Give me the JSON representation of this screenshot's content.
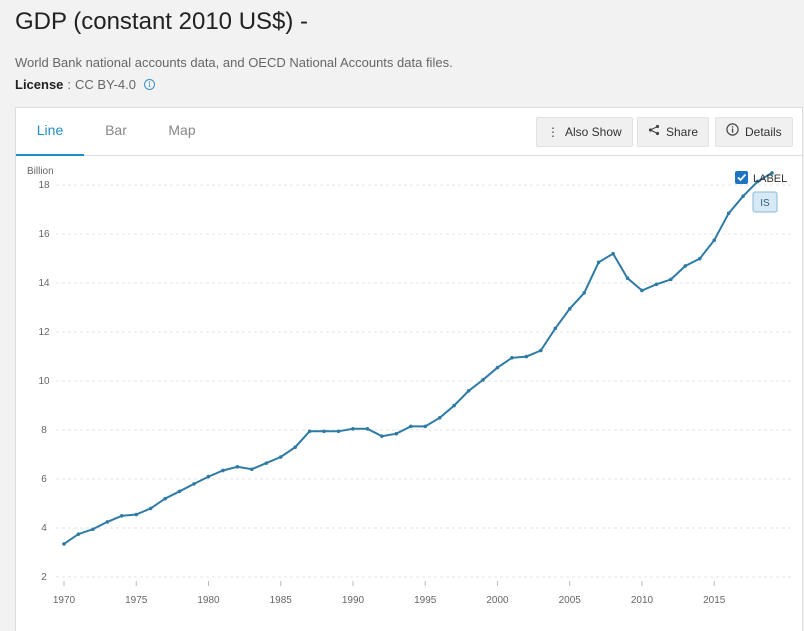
{
  "header": {
    "title": "GDP (constant 2010 US$) -",
    "source": "World Bank national accounts data, and OECD National Accounts data files.",
    "license_label": "License",
    "license_sep": ":",
    "license_value": "CC BY-4.0"
  },
  "tabs": [
    {
      "label": "Line",
      "active": true
    },
    {
      "label": "Bar",
      "active": false
    },
    {
      "label": "Map",
      "active": false
    }
  ],
  "toolbar": {
    "also_show": "Also Show",
    "share": "Share",
    "details": "Details"
  },
  "legend": {
    "label": "LABEL",
    "checked": true,
    "tag": "IS"
  },
  "chart_data": {
    "type": "line",
    "ylabel": "Billion",
    "ylim": [
      2,
      18.7
    ],
    "yticks": [
      2,
      4,
      6,
      8,
      10,
      12,
      14,
      16,
      18
    ],
    "xlim": [
      1970,
      2019
    ],
    "xticks": [
      1970,
      1975,
      1980,
      1985,
      1990,
      1995,
      2000,
      2005,
      2010,
      2015
    ],
    "grid": true,
    "line_color": "#2e7ba6",
    "series": [
      {
        "x": [
          1970,
          1971,
          1972,
          1973,
          1974,
          1975,
          1976,
          1977,
          1978,
          1979,
          1980,
          1981,
          1982,
          1983,
          1984,
          1985,
          1986,
          1987,
          1988,
          1989,
          1990,
          1991,
          1992,
          1993,
          1994,
          1995,
          1996,
          1997,
          1998,
          1999,
          2000,
          2001,
          2002,
          2003,
          2004,
          2005,
          2006,
          2007,
          2008,
          2009,
          2010,
          2011,
          2012,
          2013,
          2014,
          2015,
          2016,
          2017,
          2018,
          2019
        ],
        "values": [
          3.35,
          3.75,
          3.95,
          4.25,
          4.5,
          4.55,
          4.8,
          5.2,
          5.5,
          5.8,
          6.1,
          6.35,
          6.5,
          6.4,
          6.65,
          6.9,
          7.3,
          7.95,
          7.95,
          7.95,
          8.05,
          8.05,
          7.75,
          7.85,
          8.15,
          8.15,
          8.5,
          9.0,
          9.6,
          10.05,
          10.55,
          10.95,
          11.0,
          11.25,
          12.15,
          12.95,
          13.6,
          14.85,
          15.2,
          14.2,
          13.7,
          13.95,
          14.15,
          14.7,
          15.0,
          15.75,
          16.85,
          17.55,
          18.15,
          18.5
        ]
      }
    ]
  }
}
